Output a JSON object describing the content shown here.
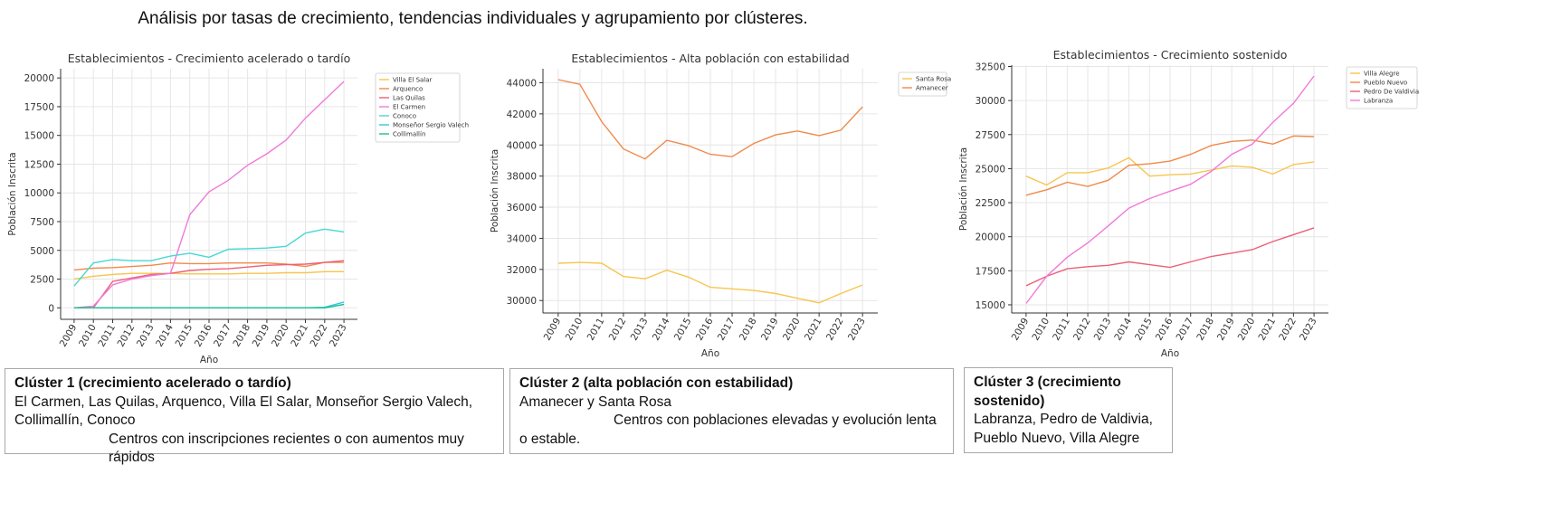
{
  "main_title": "Análisis por tasas de crecimiento, tendencias individuales y agrupamiento por clústeres.",
  "chart_data": [
    {
      "type": "line",
      "title": "Establecimientos - Crecimiento acelerado o tardío",
      "xlabel": "Año",
      "ylabel": "Población Inscrita",
      "x": [
        2009,
        2010,
        2011,
        2012,
        2013,
        2014,
        2015,
        2016,
        2017,
        2018,
        2019,
        2020,
        2021,
        2022,
        2023
      ],
      "ylim": [
        -1000,
        20800
      ],
      "yticks": [
        0,
        2500,
        5000,
        7500,
        10000,
        12500,
        15000,
        17500,
        20000
      ],
      "grid": true,
      "legend_position": "right",
      "series": [
        {
          "name": "Villa El Salar",
          "color": "#f7c54f",
          "values": [
            2500,
            2750,
            2900,
            3000,
            3000,
            3000,
            2950,
            2950,
            2950,
            3000,
            3000,
            3050,
            3050,
            3150,
            3150
          ]
        },
        {
          "name": "Arquenco",
          "color": "#f08a4b",
          "values": [
            3300,
            3450,
            3500,
            3600,
            3700,
            3900,
            3850,
            3850,
            3900,
            3900,
            3900,
            3800,
            3600,
            3950,
            3950
          ]
        },
        {
          "name": "Las Quilas",
          "color": "#ec5f77",
          "values": [
            0,
            0,
            2300,
            2600,
            2900,
            3000,
            3250,
            3350,
            3400,
            3550,
            3700,
            3750,
            3800,
            3950,
            4100
          ]
        },
        {
          "name": "El Carmen",
          "color": "#f07ad9",
          "values": [
            0,
            150,
            2000,
            2500,
            2800,
            3000,
            8100,
            10100,
            11100,
            12400,
            13400,
            14600,
            16500,
            18100,
            19700
          ]
        },
        {
          "name": "Conoco",
          "color": "#45d8d6",
          "values": [
            1900,
            3900,
            4200,
            4100,
            4100,
            4500,
            4750,
            4400,
            5100,
            5150,
            5200,
            5350,
            6500,
            6850,
            6600
          ]
        },
        {
          "name": "Monseñor Sergio Valech",
          "color": "#2fc8e5",
          "values": [
            0,
            0,
            0,
            0,
            0,
            0,
            0,
            0,
            0,
            0,
            0,
            0,
            0,
            50,
            500
          ]
        },
        {
          "name": "Collimallín",
          "color": "#1fbf8f",
          "values": [
            0,
            0,
            0,
            0,
            0,
            0,
            0,
            0,
            0,
            0,
            0,
            0,
            0,
            0,
            300
          ]
        }
      ]
    },
    {
      "type": "line",
      "title": "Establecimientos - Alta población con estabilidad",
      "xlabel": "Año",
      "ylabel": "Población Inscrita",
      "x": [
        2009,
        2010,
        2011,
        2012,
        2013,
        2014,
        2015,
        2016,
        2017,
        2018,
        2019,
        2020,
        2021,
        2022,
        2023
      ],
      "ylim": [
        29200,
        44900
      ],
      "yticks": [
        30000,
        32000,
        34000,
        36000,
        38000,
        40000,
        42000,
        44000
      ],
      "grid": true,
      "legend_position": "top-right",
      "series": [
        {
          "name": "Santa Rosa",
          "color": "#f7c54f",
          "values": [
            32400,
            32450,
            32400,
            31550,
            31400,
            31950,
            31500,
            30850,
            30750,
            30650,
            30450,
            30150,
            29850,
            30450,
            31000
          ]
        },
        {
          "name": "Amanecer",
          "color": "#f08a4b",
          "values": [
            44200,
            43900,
            41500,
            39750,
            39100,
            40300,
            39950,
            39400,
            39250,
            40100,
            40650,
            40900,
            40600,
            40950,
            42450
          ]
        }
      ]
    },
    {
      "type": "line",
      "title": "Establecimientos - Crecimiento sostenido",
      "xlabel": "Año",
      "ylabel": "Población Inscrita",
      "x": [
        2009,
        2010,
        2011,
        2012,
        2013,
        2014,
        2015,
        2016,
        2017,
        2018,
        2019,
        2020,
        2021,
        2022,
        2023
      ],
      "ylim": [
        14400,
        32600
      ],
      "yticks": [
        15000,
        17500,
        20000,
        22500,
        25000,
        27500,
        30000,
        32500
      ],
      "grid": true,
      "legend_position": "top-right",
      "series": [
        {
          "name": "Villa Alegre",
          "color": "#f7c54f",
          "values": [
            24450,
            23800,
            24700,
            24700,
            25050,
            25800,
            24450,
            24550,
            24600,
            24900,
            25200,
            25100,
            24600,
            25300,
            25500
          ]
        },
        {
          "name": "Pueblo Nuevo",
          "color": "#f08a4b",
          "values": [
            23050,
            23450,
            24000,
            23700,
            24150,
            25250,
            25350,
            25550,
            26050,
            26700,
            27000,
            27100,
            26800,
            27400,
            27350
          ]
        },
        {
          "name": "Pedro De Valdivia",
          "color": "#ec5f77",
          "values": [
            16400,
            17100,
            17650,
            17800,
            17900,
            18150,
            17950,
            17750,
            18150,
            18550,
            18800,
            19050,
            19650,
            20150,
            20650
          ]
        },
        {
          "name": "Labranza",
          "color": "#f07ad9",
          "values": [
            15100,
            17100,
            18500,
            19550,
            20800,
            22100,
            22800,
            23350,
            23850,
            24800,
            26050,
            26800,
            28400,
            29800,
            31800
          ]
        }
      ]
    }
  ],
  "clusters": [
    {
      "title": "Clúster 1 (crecimiento acelerado o tardío)",
      "members": "El Carmen, Las Quilas, Arquenco, Villa El Salar, Monseñor Sergio Valech, Collimallín, Conoco",
      "description": "Centros con inscripciones recientes o con aumentos muy rápidos"
    },
    {
      "title": "Clúster 2 (alta población con estabilidad)",
      "members": "Amanecer y Santa Rosa",
      "description": "Centros con poblaciones elevadas y evolución lenta o estable."
    },
    {
      "title": "Clúster 3 (crecimiento sostenido)",
      "members": "Labranza, Pedro de Valdivia, Pueblo Nuevo, Villa Alegre",
      "description": ""
    }
  ]
}
